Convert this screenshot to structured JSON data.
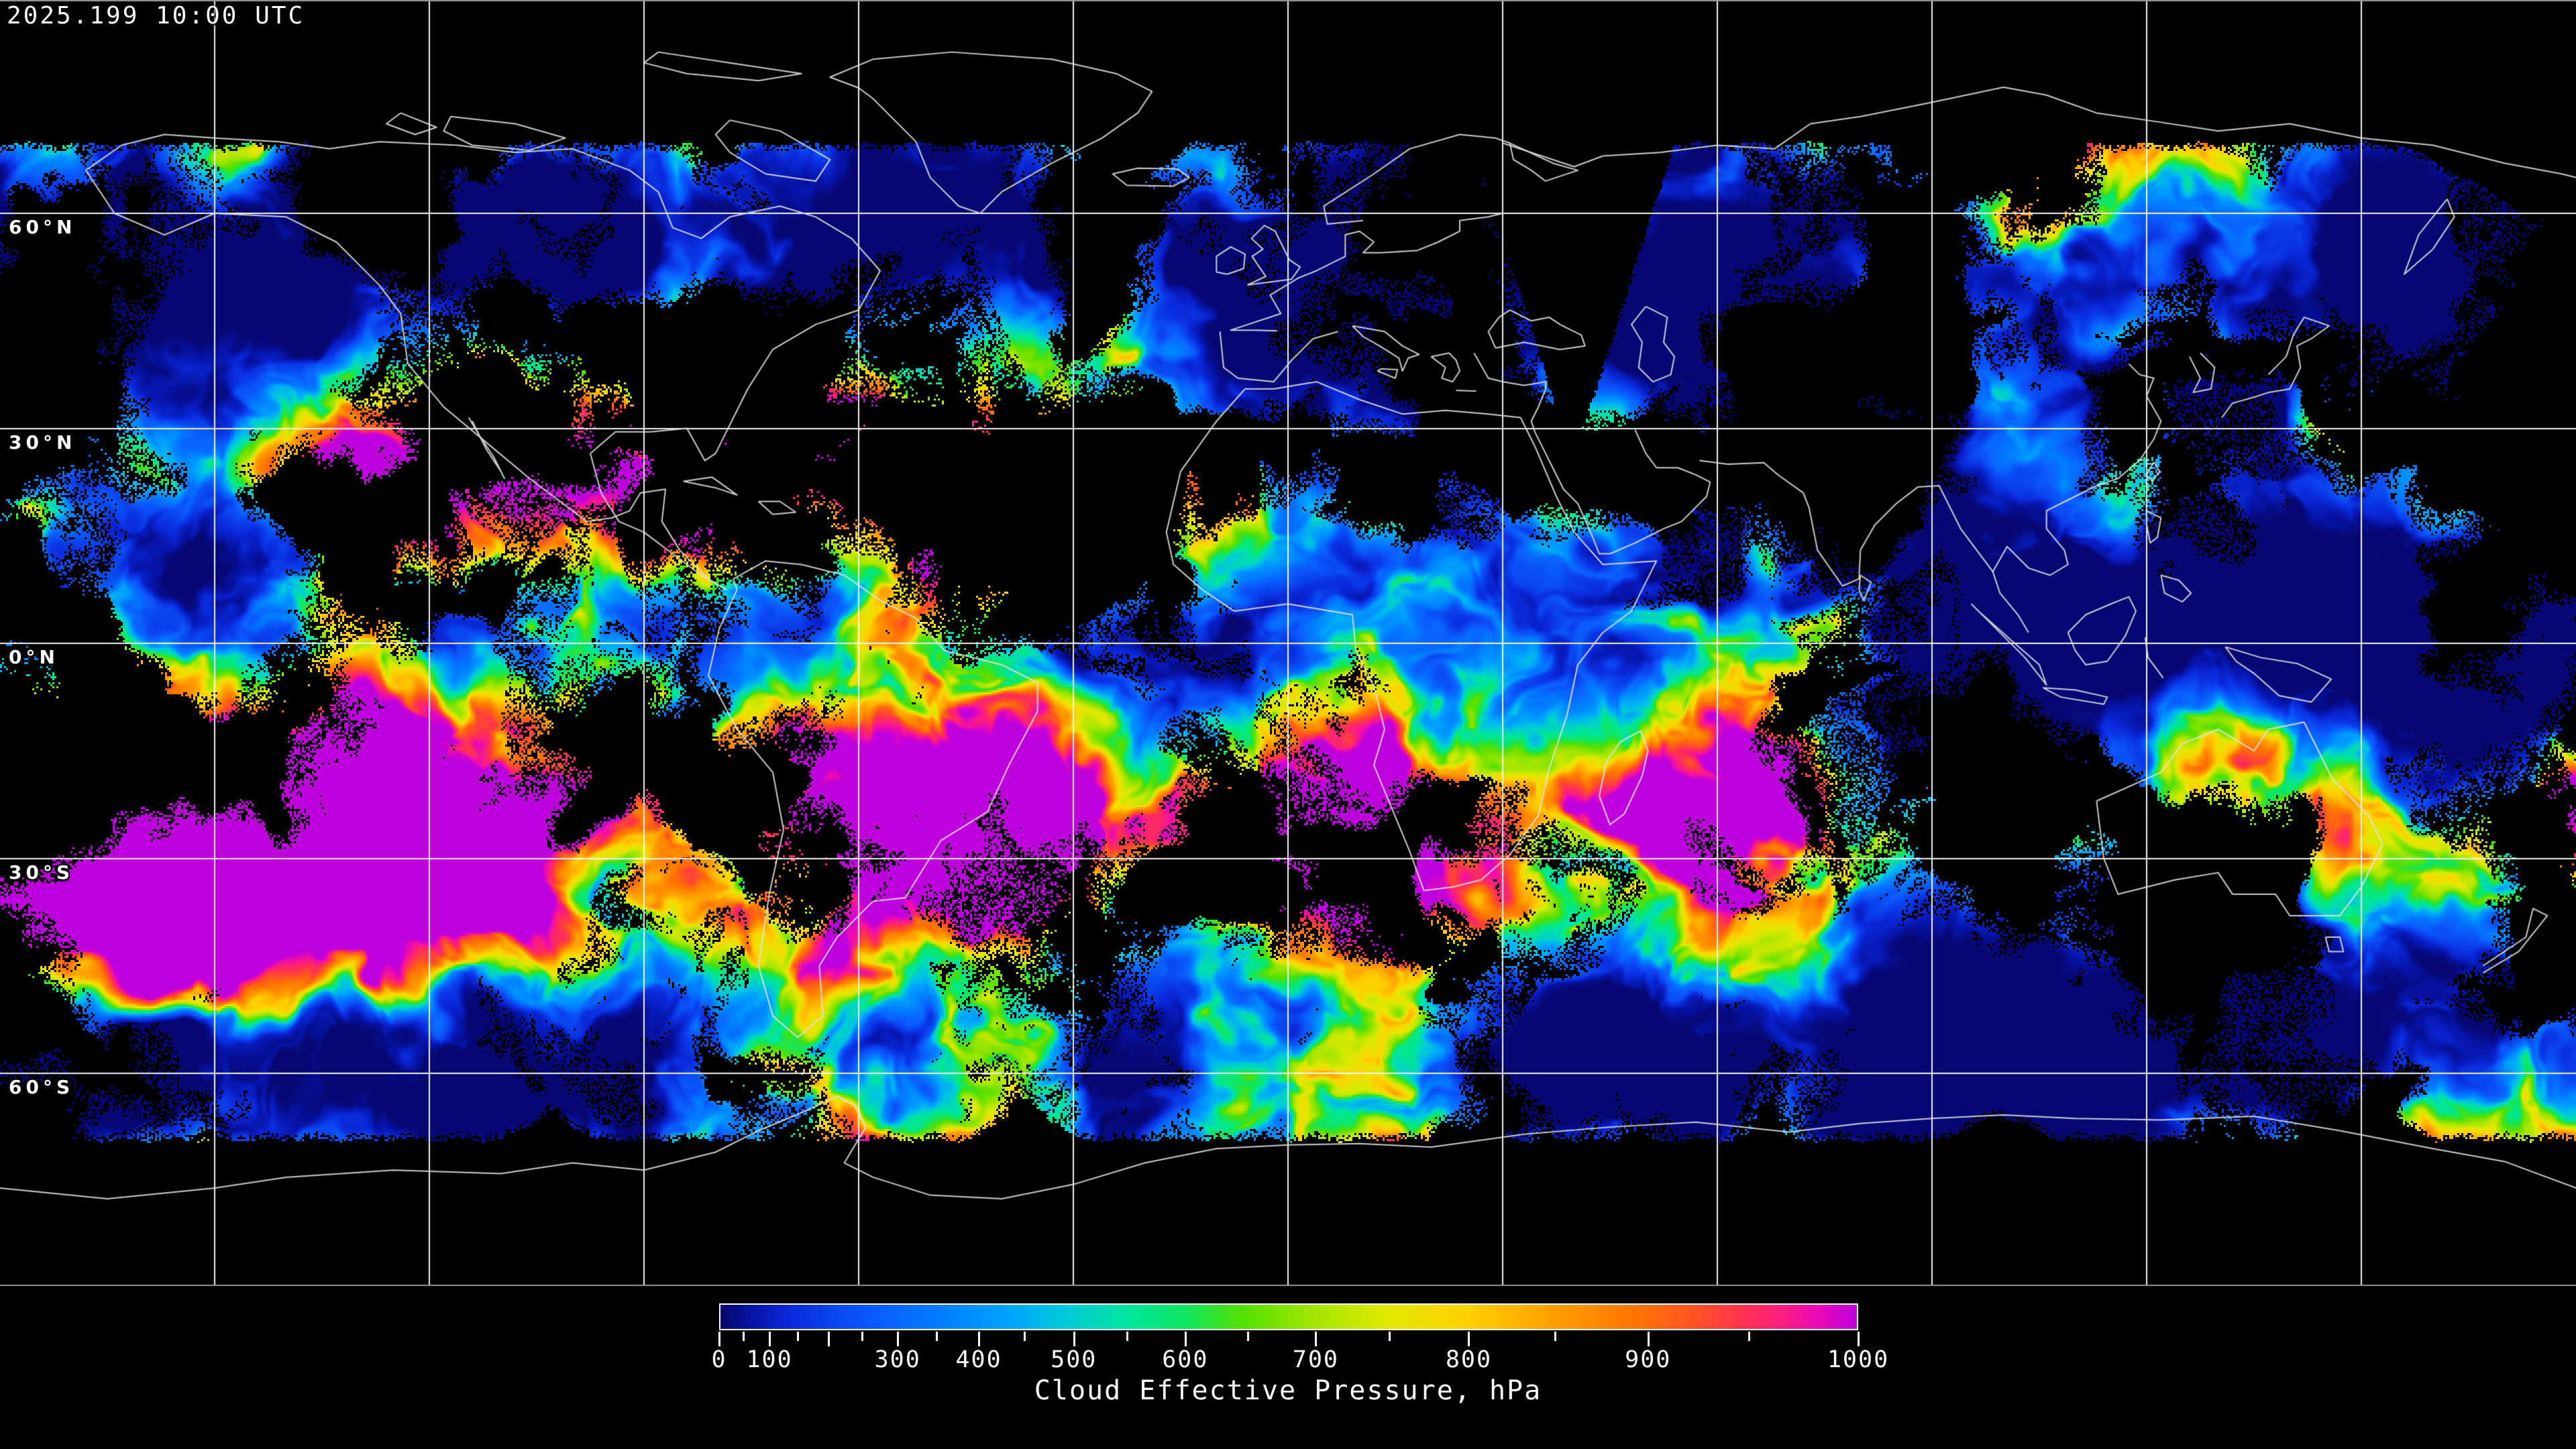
{
  "header": {
    "timestamp": "2025.199 10:00 UTC"
  },
  "map": {
    "projection": "equirectangular",
    "lon_range_deg": [
      -180,
      180
    ],
    "lat_range_deg": [
      -90,
      90
    ],
    "grid_lon_step_deg": 30,
    "grid_lat_step_deg": 30,
    "lat_labels": [
      {
        "label": "60°N",
        "lat": 60
      },
      {
        "label": "30°N",
        "lat": 30
      },
      {
        "label": "0°N",
        "lat": 0
      },
      {
        "label": "30°S",
        "lat": -30
      },
      {
        "label": "60°S",
        "lat": -60
      }
    ],
    "colors": {
      "background": "#000000",
      "grid_line": "#ffffff",
      "coastline": "#e2e2e2",
      "frame_line": "#999999",
      "label_text": "#ffffff",
      "no_data": "#000000"
    }
  },
  "colorbar": {
    "title": "Cloud Effective Pressure, hPa",
    "unit": "hPa",
    "min_value": 0,
    "max_value": 1000,
    "labeled_ticks": [
      "0",
      "100",
      "300",
      "400",
      "500",
      "600",
      "700",
      "800",
      "900",
      "1000"
    ],
    "labeled_tick_values": [
      0,
      100,
      300,
      400,
      500,
      600,
      700,
      800,
      900,
      1000
    ],
    "major_tick_step": 100,
    "minor_tick_step": 50,
    "scale": "nonlinear-geometric",
    "scale_growth_per_100hpa": 1.172,
    "gradient_stops": [
      [
        0.0,
        "#06066a"
      ],
      [
        0.03,
        "#0714a8"
      ],
      [
        0.06,
        "#0a28d8"
      ],
      [
        0.1,
        "#0a46f0"
      ],
      [
        0.15,
        "#0a64ff"
      ],
      [
        0.2,
        "#0082ff"
      ],
      [
        0.25,
        "#00a0ff"
      ],
      [
        0.3,
        "#00c8dc"
      ],
      [
        0.36,
        "#00e69b"
      ],
      [
        0.41,
        "#0fe65f"
      ],
      [
        0.46,
        "#55e000"
      ],
      [
        0.52,
        "#a0e600"
      ],
      [
        0.585,
        "#e1e900"
      ],
      [
        0.655,
        "#ffd200"
      ],
      [
        0.73,
        "#ffa000"
      ],
      [
        0.8,
        "#ff7800"
      ],
      [
        0.86,
        "#ff5028"
      ],
      [
        0.9,
        "#ff3250"
      ],
      [
        0.935,
        "#fa1e82"
      ],
      [
        0.965,
        "#eb0ab4"
      ],
      [
        1.0,
        "#be00dc"
      ]
    ]
  }
}
